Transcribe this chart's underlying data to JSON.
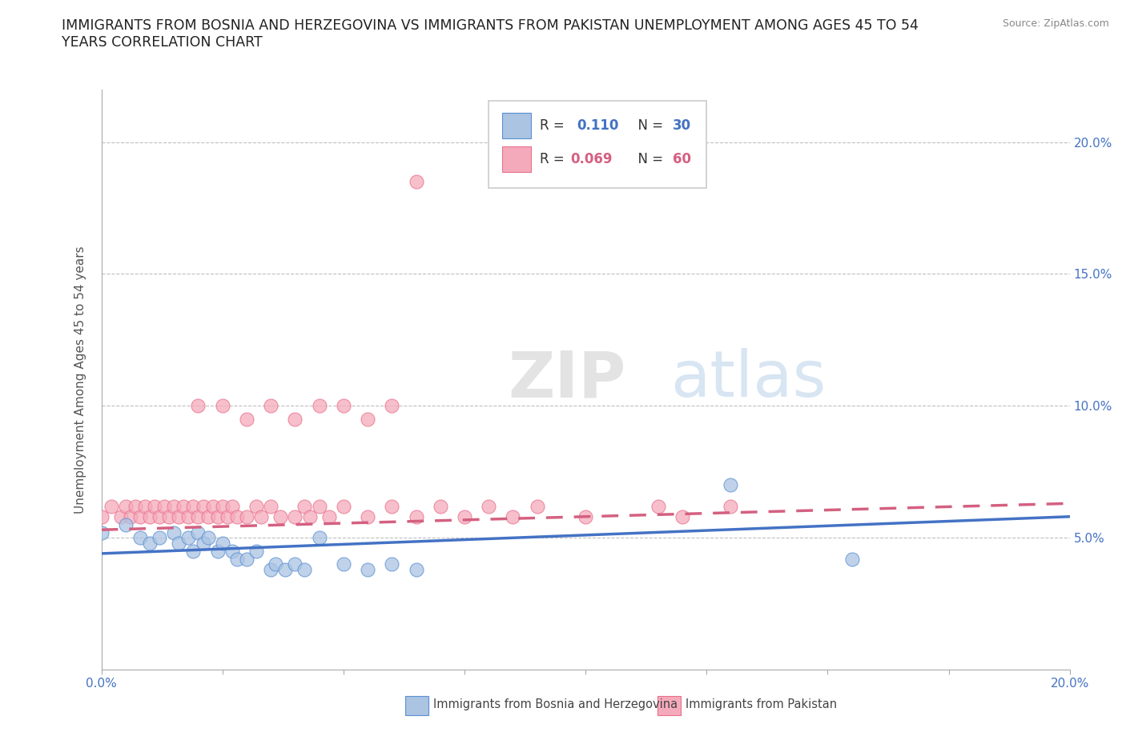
{
  "title_line1": "IMMIGRANTS FROM BOSNIA AND HERZEGOVINA VS IMMIGRANTS FROM PAKISTAN UNEMPLOYMENT AMONG AGES 45 TO 54",
  "title_line2": "YEARS CORRELATION CHART",
  "source": "Source: ZipAtlas.com",
  "ylabel": "Unemployment Among Ages 45 to 54 years",
  "xlim": [
    0.0,
    0.2
  ],
  "ylim": [
    0.0,
    0.22
  ],
  "bosnia_color": "#aac4e2",
  "pakistan_color": "#f5aabb",
  "bosnia_edge_color": "#5b8fd4",
  "pakistan_edge_color": "#e8708a",
  "bosnia_line_color": "#4472c4",
  "pakistan_line_color": "#d46080",
  "legend_bosnia_R": "0.110",
  "legend_bosnia_N": "30",
  "legend_pakistan_R": "0.069",
  "legend_pakistan_N": "60",
  "background_color": "#ffffff",
  "grid_color": "#b0b0b0",
  "title_fontsize": 12.5,
  "axis_label_fontsize": 11,
  "tick_fontsize": 11,
  "tick_color": "#4472c4",
  "bosnia_x": [
    0.0,
    0.003,
    0.005,
    0.007,
    0.008,
    0.009,
    0.01,
    0.011,
    0.012,
    0.013,
    0.014,
    0.015,
    0.016,
    0.017,
    0.018,
    0.019,
    0.02,
    0.021,
    0.022,
    0.023,
    0.025,
    0.027,
    0.028,
    0.03,
    0.032,
    0.035,
    0.037,
    0.04,
    0.13,
    0.155
  ],
  "bosnia_y": [
    0.05,
    0.055,
    0.055,
    0.048,
    0.048,
    0.05,
    0.052,
    0.048,
    0.05,
    0.052,
    0.048,
    0.05,
    0.052,
    0.048,
    0.05,
    0.045,
    0.052,
    0.048,
    0.05,
    0.045,
    0.05,
    0.045,
    0.048,
    0.04,
    0.045,
    0.04,
    0.042,
    0.042,
    0.07,
    0.04
  ],
  "pakistan_x": [
    0.0,
    0.002,
    0.003,
    0.004,
    0.005,
    0.006,
    0.007,
    0.008,
    0.009,
    0.01,
    0.011,
    0.012,
    0.013,
    0.014,
    0.015,
    0.016,
    0.017,
    0.018,
    0.019,
    0.02,
    0.021,
    0.022,
    0.023,
    0.024,
    0.025,
    0.026,
    0.027,
    0.028,
    0.029,
    0.03,
    0.032,
    0.033,
    0.035,
    0.037,
    0.038,
    0.04,
    0.042,
    0.043,
    0.045,
    0.047,
    0.05,
    0.053,
    0.055,
    0.06,
    0.065,
    0.07,
    0.075,
    0.085,
    0.09,
    0.095,
    0.1,
    0.105,
    0.11,
    0.115,
    0.12,
    0.13,
    0.145,
    0.05,
    0.065,
    0.04
  ],
  "pakistan_y": [
    0.055,
    0.06,
    0.055,
    0.06,
    0.055,
    0.065,
    0.06,
    0.055,
    0.065,
    0.06,
    0.055,
    0.065,
    0.06,
    0.055,
    0.065,
    0.06,
    0.055,
    0.065,
    0.055,
    0.06,
    0.055,
    0.065,
    0.06,
    0.055,
    0.065,
    0.06,
    0.055,
    0.065,
    0.055,
    0.055,
    0.06,
    0.055,
    0.065,
    0.055,
    0.065,
    0.055,
    0.065,
    0.055,
    0.06,
    0.055,
    0.06,
    0.055,
    0.065,
    0.055,
    0.065,
    0.055,
    0.06,
    0.055,
    0.065,
    0.055,
    0.065,
    0.055,
    0.065,
    0.055,
    0.065,
    0.055,
    0.055,
    0.1,
    0.1,
    0.185
  ],
  "watermark_text": "ZIPatlas",
  "bosnia_line_start_y": 0.044,
  "bosnia_line_end_y": 0.058,
  "pakistan_line_start_y": 0.053,
  "pakistan_line_end_y": 0.063
}
